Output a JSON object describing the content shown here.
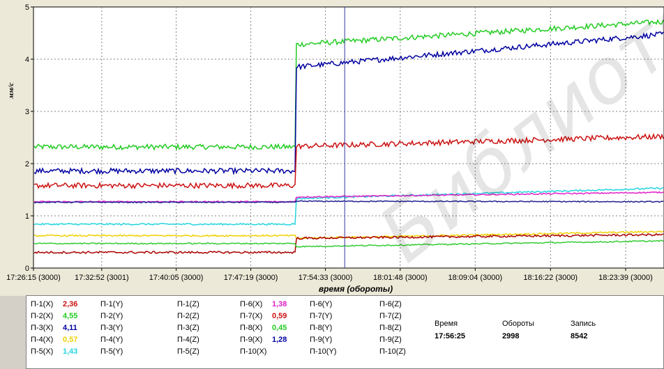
{
  "chart_data": {
    "type": "line",
    "ylabel": "мм/с",
    "xlabel": "время (обороты)",
    "ylim": [
      0,
      5
    ],
    "yticks": [
      "0",
      "1",
      "2",
      "3",
      "4",
      "5"
    ],
    "xticks": [
      "17:26:15 (3000)",
      "17:32:52 (3001)",
      "17:40:05 (3000)",
      "17:47:19 (3000)",
      "17:54:33 (3000)",
      "18:01:48 (3000)",
      "18:09:04 (3000)",
      "18:16:22 (3000)",
      "18:23:39 (3000)"
    ],
    "grid": true,
    "cursor_position": "17:56:25",
    "step_position": "17:51:40",
    "series": [
      {
        "name": "П-2(X)",
        "color": "#22cc22",
        "before": 2.32,
        "after_start": 4.28,
        "after_end": 4.72,
        "noise": 0.05
      },
      {
        "name": "П-3(X)",
        "color": "#0000a0",
        "before": 1.86,
        "after_start": 3.85,
        "after_end": 4.48,
        "noise": 0.05
      },
      {
        "name": "П-1(X)",
        "color": "#cc1111",
        "before": 1.58,
        "after_start": 2.33,
        "after_end": 2.52,
        "noise": 0.05
      },
      {
        "name": "П-5(X)",
        "color": "#22d4e0",
        "before": 0.84,
        "after_start": 1.33,
        "after_end": 1.53,
        "noise": 0.015
      },
      {
        "name": "П-6(X)",
        "color": "#e020c8",
        "before": 1.27,
        "after_start": 1.36,
        "after_end": 1.45,
        "noise": 0.012
      },
      {
        "name": "П-9(X)",
        "color": "#202090",
        "before": 1.26,
        "after_start": 1.28,
        "after_end": 1.27,
        "noise": 0.01
      },
      {
        "name": "П-4(X)",
        "color": "#f0d000",
        "before": 0.62,
        "after_start": 0.57,
        "after_end": 0.7,
        "noise": 0.015
      },
      {
        "name": "П-7(X)",
        "color": "#aa0000",
        "before": 0.3,
        "after_start": 0.57,
        "after_end": 0.64,
        "noise": 0.02
      },
      {
        "name": "П-8(X)",
        "color": "#33cc33",
        "before": 0.47,
        "after_start": 0.41,
        "after_end": 0.52,
        "noise": 0.012
      }
    ]
  },
  "legend": {
    "rows": [
      [
        {
          "label": "П-1(X)",
          "value": "2,36",
          "color": "#cc1111"
        },
        {
          "label": "П-1(Y)"
        },
        {
          "label": "П-1(Z)"
        },
        {
          "label": "П-6(X)",
          "value": "1,38",
          "color": "#e020c8"
        },
        {
          "label": "П-6(Y)"
        },
        {
          "label": "П-6(Z)"
        }
      ],
      [
        {
          "label": "П-2(X)",
          "value": "4,55",
          "color": "#22cc22"
        },
        {
          "label": "П-2(Y)"
        },
        {
          "label": "П-2(Z)"
        },
        {
          "label": "П-7(X)",
          "value": "0,59",
          "color": "#cc1111"
        },
        {
          "label": "П-7(Y)"
        },
        {
          "label": "П-7(Z)"
        }
      ],
      [
        {
          "label": "П-3(X)",
          "value": "4,11",
          "color": "#0000a0"
        },
        {
          "label": "П-3(Y)"
        },
        {
          "label": "П-3(Z)"
        },
        {
          "label": "П-8(X)",
          "value": "0,45",
          "color": "#22cc22"
        },
        {
          "label": "П-8(Y)"
        },
        {
          "label": "П-8(Z)"
        }
      ],
      [
        {
          "label": "П-4(X)",
          "value": "0,57",
          "color": "#f0d000"
        },
        {
          "label": "П-4(Y)"
        },
        {
          "label": "П-4(Z)"
        },
        {
          "label": "П-9(X)",
          "value": "1,28",
          "color": "#0000a0"
        },
        {
          "label": "П-9(Y)"
        },
        {
          "label": "П-9(Z)"
        }
      ],
      [
        {
          "label": "П-5(X)",
          "value": "1,43",
          "color": "#22d4e0"
        },
        {
          "label": "П-5(Y)"
        },
        {
          "label": "П-5(Z)"
        },
        {
          "label": "П-10(X)"
        },
        {
          "label": "П-10(Y)"
        },
        {
          "label": "П-10(Z)"
        }
      ]
    ]
  },
  "info": {
    "time_label": "Время",
    "time_value": "17:56:25",
    "revolutions_label": "Обороты",
    "revolutions_value": "2998",
    "record_label": "Запись",
    "record_value": "8542"
  },
  "watermark": "Библиотека БГУИР",
  "colors": {
    "background": "#ece9d8",
    "plot_background": "#ffffff",
    "cursor": "#3a3aa0",
    "grid": "#808080"
  }
}
